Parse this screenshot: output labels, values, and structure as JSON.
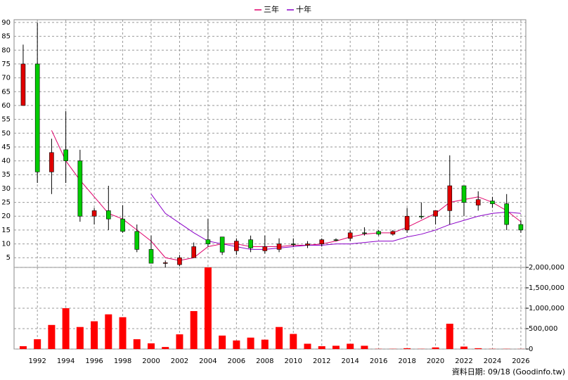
{
  "chart_data": [
    {
      "type": "candlestick",
      "x": [
        1991,
        1992,
        1993,
        1994,
        1995,
        1996,
        1997,
        1998,
        1999,
        2000,
        2001,
        2002,
        2003,
        2004,
        2005,
        2006,
        2007,
        2008,
        2009,
        2010,
        2011,
        2012,
        2013,
        2014,
        2015,
        2016,
        2017,
        2018,
        2019,
        2020,
        2021,
        2022,
        2023,
        2024,
        2025,
        2026
      ],
      "open": [
        60,
        75,
        36,
        44,
        40,
        20,
        22,
        19,
        14.5,
        8,
        3,
        2.5,
        5,
        11.5,
        12.5,
        7.5,
        11.5,
        7.5,
        8,
        10,
        9.5,
        10,
        11.5,
        12,
        14,
        14.5,
        13.5,
        15,
        20,
        20,
        22,
        31,
        24,
        25.5,
        24.5,
        17
      ],
      "high": [
        82,
        90,
        48,
        58,
        44,
        23,
        31,
        24,
        17,
        13,
        4,
        6,
        10.5,
        19,
        12.5,
        12,
        13,
        13,
        12,
        12,
        11,
        12,
        12,
        15,
        16,
        15,
        15,
        23,
        25,
        22,
        42,
        31,
        29,
        27,
        28,
        18.5
      ],
      "low": [
        60,
        32,
        28,
        32,
        18,
        17,
        15,
        14,
        7,
        3,
        1.5,
        2,
        5,
        9,
        6,
        6,
        7,
        6.5,
        7,
        9,
        8.5,
        9,
        11,
        11,
        13,
        13,
        13,
        14,
        19,
        17,
        17,
        20,
        22,
        23,
        15,
        14
      ],
      "close": [
        75,
        36,
        43,
        40,
        20,
        22,
        19,
        14.5,
        8,
        3,
        3.2,
        5,
        9,
        10,
        7,
        11,
        8.5,
        9,
        10,
        10,
        10,
        11.5,
        11.5,
        14,
        14,
        13.5,
        14.5,
        20,
        20,
        22,
        31,
        25,
        26,
        24.5,
        17,
        15
      ],
      "up_color": "#e00000",
      "down_color": "#00cc00",
      "series": [
        {
          "name": "三年",
          "color": "#e0006a",
          "values": [
            null,
            null,
            51,
            40,
            33,
            27,
            21,
            19,
            15,
            11,
            5,
            4,
            5,
            9,
            10,
            10,
            9,
            9,
            9,
            9.5,
            9.5,
            10,
            11,
            12.5,
            13.5,
            14,
            14,
            16,
            18.5,
            21,
            25,
            26,
            27,
            25,
            22,
            18
          ]
        },
        {
          "name": "十年",
          "color": "#8a00c8",
          "values": [
            null,
            null,
            null,
            null,
            null,
            null,
            null,
            null,
            null,
            28,
            21,
            17.5,
            14,
            11,
            10,
            9,
            8,
            8,
            8.5,
            9,
            9.5,
            9.5,
            10,
            10,
            10.5,
            11,
            11,
            12.5,
            13.5,
            15,
            17,
            18.5,
            20,
            21,
            21.5,
            21
          ]
        }
      ],
      "xlim": [
        1990.36,
        2026.35
      ],
      "ylim": [
        1.5,
        91
      ],
      "yticks": [
        5,
        10,
        15,
        20,
        25,
        30,
        35,
        40,
        45,
        50,
        55,
        60,
        65,
        70,
        75,
        80,
        85,
        90
      ],
      "grid": true
    },
    {
      "type": "bar",
      "x": [
        1991,
        1992,
        1993,
        1994,
        1995,
        1996,
        1997,
        1998,
        1999,
        2000,
        2001,
        2002,
        2003,
        2004,
        2005,
        2006,
        2007,
        2008,
        2009,
        2010,
        2011,
        2012,
        2013,
        2014,
        2015,
        2016,
        2017,
        2018,
        2019,
        2020,
        2021,
        2022,
        2023,
        2024,
        2025,
        2026
      ],
      "values": [
        70000,
        240000,
        590000,
        1000000,
        540000,
        680000,
        850000,
        780000,
        240000,
        140000,
        50000,
        360000,
        930000,
        2000000,
        330000,
        210000,
        280000,
        230000,
        540000,
        370000,
        130000,
        70000,
        80000,
        130000,
        80000,
        5000,
        5000,
        20000,
        5000,
        40000,
        620000,
        60000,
        20000,
        5000,
        5000,
        3000
      ],
      "color": "#ff0000",
      "xlim": [
        1990.36,
        2026.35
      ],
      "xticks": [
        1992,
        1994,
        1996,
        1998,
        2000,
        2002,
        2004,
        2006,
        2008,
        2010,
        2012,
        2014,
        2016,
        2018,
        2020,
        2022,
        2024,
        2026
      ],
      "ylim": [
        0,
        2000000
      ],
      "yticks": [
        0,
        {
          "value": 500000,
          "label": "500,000"
        },
        {
          "value": 1000000,
          "label": "1,000,000"
        },
        {
          "value": 1500000,
          "label": "1,500,000"
        },
        {
          "value": 2000000,
          "label": "2,000,000"
        }
      ],
      "grid": true,
      "note": "資料日期: 09/18 (Goodinfo.tw)"
    }
  ]
}
